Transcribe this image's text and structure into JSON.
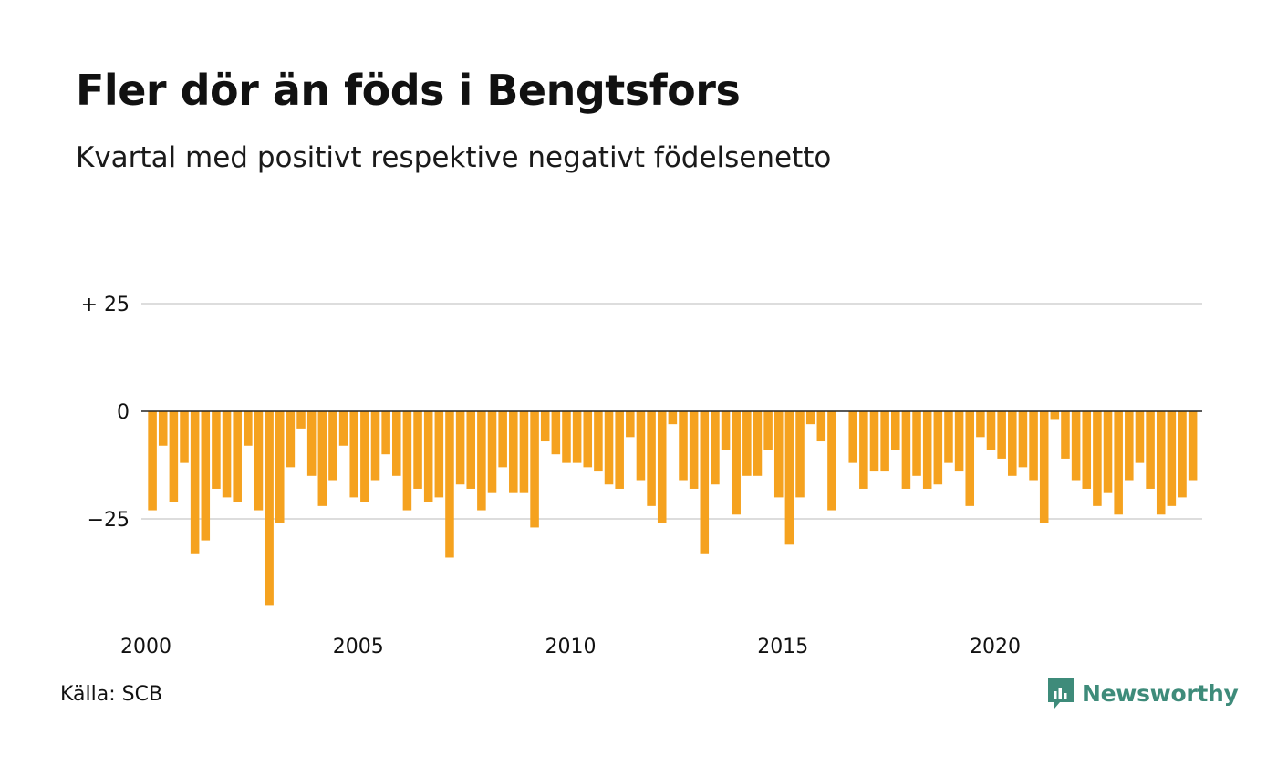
{
  "title": "Fler dör än föds i Bengtsfors",
  "subtitle": "Kvartal med positivt respektive negativt födelsenetto",
  "source": "Källa: SCB",
  "brand": {
    "name": "Newsworthy",
    "icon": "newsworthy-logo-icon",
    "color": "#3e8b7a"
  },
  "colors": {
    "bar": "#f5a21f",
    "grid": "#dddddd",
    "zero_line": "#222222"
  },
  "chart_data": {
    "type": "bar",
    "title": "Fler dör än föds i Bengtsfors",
    "subtitle": "Kvartal med positivt respektive negativt födelsenetto",
    "xlabel": "",
    "ylabel": "",
    "ylim": [
      -48,
      35
    ],
    "y_ticks": [
      {
        "value": 25,
        "label": "+ 25"
      },
      {
        "value": 0,
        "label": "0"
      },
      {
        "value": -25,
        "label": "−25"
      }
    ],
    "x_ticks": [
      {
        "value": 2000,
        "label": "2000"
      },
      {
        "value": 2005,
        "label": "2005"
      },
      {
        "value": 2010,
        "label": "2010"
      },
      {
        "value": 2015,
        "label": "2015"
      },
      {
        "value": 2020,
        "label": "2020"
      }
    ],
    "x_start": 2000,
    "period": "quarter",
    "grid": true,
    "values": [
      -23,
      -8,
      -21,
      -12,
      -33,
      -30,
      -18,
      -20,
      -21,
      -8,
      -23,
      -45,
      -26,
      -13,
      -4,
      -15,
      -22,
      -16,
      -8,
      -20,
      -21,
      -16,
      -10,
      -15,
      -23,
      -18,
      -21,
      -20,
      -34,
      -17,
      -18,
      -23,
      -19,
      -13,
      -19,
      -19,
      -27,
      -7,
      -10,
      -12,
      -12,
      -13,
      -14,
      -17,
      -18,
      -6,
      -16,
      -22,
      -26,
      -3,
      -16,
      -18,
      -33,
      -17,
      -9,
      -24,
      -15,
      -15,
      -9,
      -20,
      -31,
      -20,
      -3,
      -7,
      -23,
      0,
      -12,
      -18,
      -14,
      -14,
      -9,
      -18,
      -15,
      -18,
      -17,
      -12,
      -14,
      -22,
      -6,
      -9,
      -11,
      -15,
      -13,
      -16,
      -26,
      -2,
      -11,
      -16,
      -18,
      -22,
      -19,
      -24,
      -16,
      -12,
      -18,
      -24,
      -22,
      -20,
      -16
    ]
  }
}
